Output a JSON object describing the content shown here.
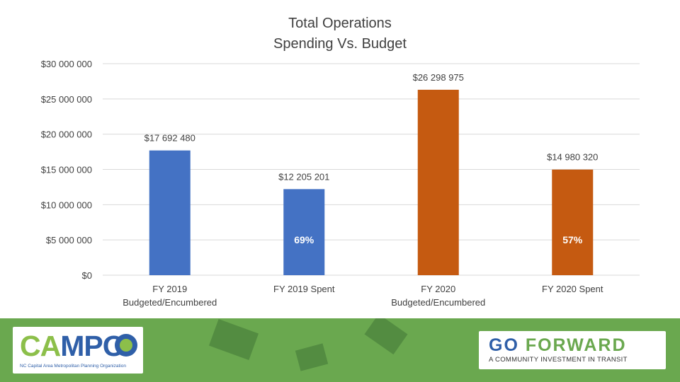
{
  "chart_data": {
    "type": "bar",
    "title": [
      "Total Operations",
      "Spending Vs. Budget"
    ],
    "categories": [
      [
        "FY 2019",
        "Budgeted/Encumbered"
      ],
      [
        "FY 2019 Spent"
      ],
      [
        "FY 2020",
        "Budgeted/Encumbered"
      ],
      [
        "FY 2020 Spent"
      ]
    ],
    "values": [
      17692480,
      12205201,
      26298975,
      14980320
    ],
    "value_labels": [
      "$17 692 480",
      "$12 205 201",
      "$26 298 975",
      "$14 980 320"
    ],
    "bar_colors": [
      "#4472c4",
      "#4472c4",
      "#c55a11",
      "#c55a11"
    ],
    "percent_labels": [
      "",
      "69%",
      "",
      "57%"
    ],
    "ylim": [
      0,
      30000000
    ],
    "yticks": [
      0,
      5000000,
      10000000,
      15000000,
      20000000,
      25000000,
      30000000
    ],
    "ytick_labels": [
      "$0",
      "$5 000 000",
      "$10 000 000",
      "$15 000 000",
      "$20 000 000",
      "$25 000 000",
      "$30 000 000"
    ],
    "grid": true,
    "gridline_color": "#d9d9d9",
    "xlabel": "",
    "ylabel": ""
  },
  "footer": {
    "background_color": "#6aa84f",
    "campo_logo": {
      "word_part1": "CA",
      "word_part2": "MP",
      "word_part3": "O",
      "subtitle": "NC Capital Area Metropolitan Planning Organization"
    },
    "go_forward_logo": {
      "word_part1": "GO ",
      "word_part2": "FORWARD",
      "tagline": "A COMMUNITY INVESTMENT IN TRANSIT"
    }
  }
}
